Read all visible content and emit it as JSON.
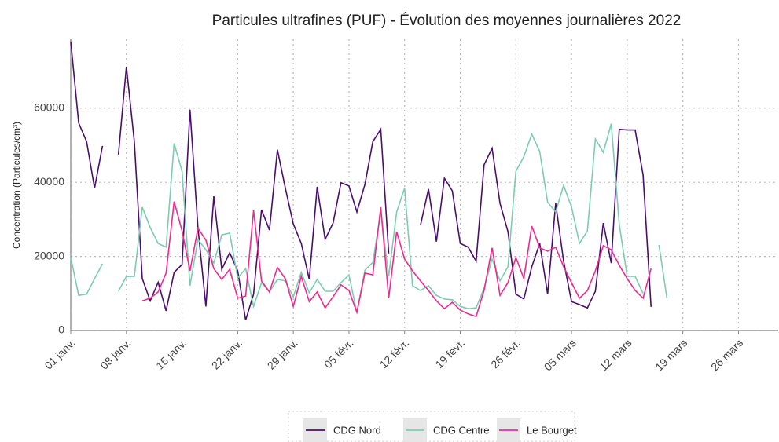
{
  "chart_data": {
    "type": "line",
    "title": "Particules ultrafines (PUF)  - Évolution des moyennes journalières 2022",
    "y_label": "Concentration (Particules/cm³)",
    "x": [
      0,
      1,
      2,
      3,
      4,
      5,
      6,
      7,
      8,
      9,
      10,
      11,
      12,
      13,
      14,
      15,
      16,
      17,
      18,
      19,
      20,
      21,
      22,
      23,
      24,
      25,
      26,
      27,
      28,
      29,
      30,
      31,
      32,
      33,
      34,
      35,
      36,
      37,
      38,
      39,
      40,
      41,
      42,
      43,
      44,
      45,
      46,
      47,
      48,
      49,
      50,
      51,
      52,
      53,
      54,
      55,
      56,
      57,
      58,
      59,
      60,
      61,
      62,
      63,
      64,
      65,
      66,
      67,
      68,
      69,
      70,
      71,
      72,
      73,
      74,
      75
    ],
    "series": [
      {
        "name": "CDG Nord",
        "color": "#4a0e6e",
        "values": [
          78000,
          56000,
          51000,
          38400,
          49800,
          null,
          47500,
          71200,
          51000,
          14000,
          8000,
          13000,
          5300,
          15700,
          17800,
          59600,
          27800,
          6500,
          36200,
          16500,
          21000,
          16100,
          2800,
          9800,
          32600,
          27100,
          48800,
          38400,
          28800,
          23500,
          13800,
          38800,
          24600,
          29000,
          39900,
          39000,
          32000,
          39400,
          51000,
          54300,
          20800,
          null,
          null,
          null,
          28400,
          38200,
          24000,
          41100,
          37700,
          23500,
          22500,
          18700,
          44700,
          49200,
          34300,
          26700,
          9800,
          8500,
          17200,
          23500,
          9800,
          34300,
          18700,
          7800,
          7000,
          6100,
          10600,
          29000,
          18200,
          54300,
          54100,
          54100,
          42000,
          6400,
          null,
          null
        ]
      },
      {
        "name": "CDG Centre",
        "color": "#7ccdb0",
        "values": [
          19700,
          9500,
          9800,
          14000,
          18000,
          null,
          10600,
          14600,
          14600,
          33300,
          27800,
          23500,
          22500,
          50500,
          43000,
          12100,
          24600,
          21800,
          18200,
          25800,
          26300,
          14200,
          16700,
          6500,
          12900,
          10400,
          13800,
          13400,
          9100,
          15700,
          10200,
          13800,
          10600,
          10600,
          12900,
          15000,
          4900,
          16300,
          18400,
          32000,
          14600,
          32000,
          38400,
          12100,
          10800,
          12100,
          9500,
          8500,
          8300,
          6500,
          5900,
          6100,
          11400,
          19300,
          13400,
          17200,
          43000,
          46900,
          53000,
          48300,
          34600,
          32000,
          39200,
          33300,
          23500,
          26900,
          51700,
          48100,
          55800,
          28600,
          14600,
          14600,
          10000,
          null,
          23100,
          8700
        ]
      },
      {
        "name": "Le Bourget",
        "color": "#ee2a90",
        "values": [
          null,
          null,
          null,
          null,
          null,
          null,
          null,
          null,
          null,
          8000,
          8700,
          10400,
          15500,
          34800,
          26900,
          16100,
          27600,
          24400,
          16700,
          13800,
          16500,
          8700,
          9300,
          32400,
          13400,
          10400,
          17000,
          14000,
          6500,
          14600,
          7800,
          10400,
          6100,
          9100,
          12300,
          10800,
          4900,
          15500,
          15000,
          33300,
          8700,
          26700,
          19300,
          16100,
          13400,
          10800,
          8000,
          5900,
          7600,
          5500,
          4500,
          3800,
          10800,
          22300,
          9500,
          12900,
          19700,
          14000,
          28200,
          22300,
          21400,
          22500,
          17200,
          12900,
          8700,
          10800,
          16100,
          22900,
          21800,
          17600,
          14000,
          10800,
          8700,
          16700,
          null,
          null
        ]
      }
    ],
    "xlim": [
      0,
      89
    ],
    "xticks": [
      {
        "value": 0,
        "label": "01 janv."
      },
      {
        "value": 7,
        "label": "08 janv."
      },
      {
        "value": 14,
        "label": "15 janv."
      },
      {
        "value": 21,
        "label": "22 janv."
      },
      {
        "value": 28,
        "label": "29 janv."
      },
      {
        "value": 35,
        "label": "05 févr."
      },
      {
        "value": 42,
        "label": "12 févr."
      },
      {
        "value": 49,
        "label": "19 févr."
      },
      {
        "value": 56,
        "label": "26 févr."
      },
      {
        "value": 63,
        "label": "05 mars"
      },
      {
        "value": 70,
        "label": "12 mars"
      },
      {
        "value": 77,
        "label": "19 mars"
      },
      {
        "value": 84,
        "label": "26 mars"
      }
    ],
    "ylim": [
      0,
      78600
    ],
    "yticks": [
      0,
      20000,
      40000,
      60000
    ],
    "grid": true
  }
}
